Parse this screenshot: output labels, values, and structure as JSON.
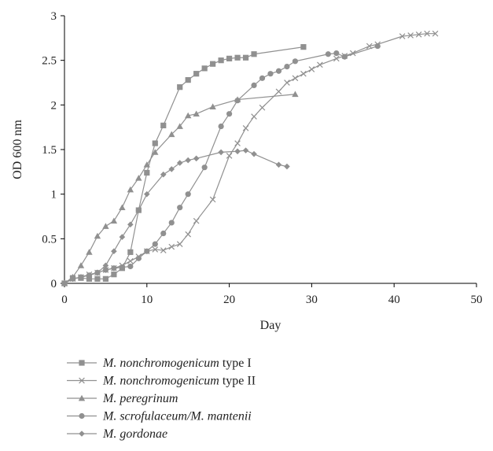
{
  "chart_data": {
    "type": "line",
    "title": "",
    "xlabel": "Day",
    "ylabel": "OD 600 nm",
    "xlim": [
      0,
      50
    ],
    "ylim": [
      0,
      3
    ],
    "xticks": [
      0,
      10,
      20,
      30,
      40,
      50
    ],
    "yticks": [
      0,
      0.5,
      1,
      1.5,
      2,
      2.5,
      3
    ],
    "xtick_labels": [
      "0",
      "10",
      "20",
      "30",
      "40",
      "50"
    ],
    "ytick_labels": [
      "0",
      "0.5",
      "1",
      "1.5",
      "2",
      "2.5",
      "3"
    ],
    "grid": false,
    "legend_position": "bottom",
    "colors": {
      "series": "#909090",
      "axis": "#000000",
      "text": "#222222"
    },
    "series": [
      {
        "name": "M. nonchromogenicum type I",
        "name_italic": "M. nonchromogenicum",
        "name_suffix": " type I",
        "marker": "square",
        "x": [
          0,
          1,
          2,
          3,
          4,
          5,
          6,
          7,
          8,
          9,
          10,
          11,
          12,
          14,
          15,
          16,
          17,
          18,
          19,
          20,
          21,
          22,
          23,
          29
        ],
        "y": [
          0,
          0.06,
          0.06,
          0.05,
          0.05,
          0.05,
          0.1,
          0.17,
          0.35,
          0.82,
          1.24,
          1.57,
          1.77,
          2.2,
          2.28,
          2.35,
          2.41,
          2.46,
          2.5,
          2.52,
          2.53,
          2.53,
          2.57,
          2.65
        ]
      },
      {
        "name": "M. nonchromogenicum type II",
        "name_italic": "M. nonchromogenicum",
        "name_suffix": " type II",
        "marker": "x",
        "x": [
          0,
          1,
          2,
          3,
          4,
          5,
          6,
          7,
          8,
          9,
          10,
          11,
          12,
          13,
          14,
          15,
          16,
          18,
          20,
          21,
          22,
          23,
          24,
          26,
          27,
          28,
          29,
          30,
          31,
          33,
          34,
          35,
          37,
          38,
          41,
          42,
          43,
          44,
          45
        ],
        "y": [
          0,
          0.05,
          0.07,
          0.1,
          0.12,
          0.15,
          0.17,
          0.2,
          0.25,
          0.3,
          0.36,
          0.38,
          0.37,
          0.41,
          0.44,
          0.55,
          0.7,
          0.94,
          1.43,
          1.57,
          1.74,
          1.87,
          1.97,
          2.15,
          2.25,
          2.3,
          2.35,
          2.4,
          2.45,
          2.52,
          2.55,
          2.58,
          2.66,
          2.68,
          2.77,
          2.78,
          2.79,
          2.8,
          2.8
        ]
      },
      {
        "name": "M. peregrinum",
        "name_italic": "M. peregrinum",
        "name_suffix": "",
        "marker": "triangle",
        "x": [
          0,
          1,
          2,
          3,
          4,
          5,
          6,
          7,
          8,
          9,
          10,
          11,
          13,
          14,
          15,
          16,
          18,
          21,
          28
        ],
        "y": [
          0,
          0.07,
          0.2,
          0.35,
          0.53,
          0.64,
          0.7,
          0.85,
          1.05,
          1.18,
          1.33,
          1.47,
          1.67,
          1.76,
          1.88,
          1.9,
          1.98,
          2.06,
          2.12
        ]
      },
      {
        "name": "M. scrofulaceum/M. mantenii",
        "name_italic": "M. scrofulaceum/M. mantenii",
        "name_suffix": "",
        "marker": "circle",
        "x": [
          0,
          1,
          2,
          3,
          4,
          5,
          6,
          7,
          8,
          9,
          10,
          11,
          12,
          13,
          14,
          15,
          17,
          19,
          20,
          21,
          23,
          24,
          25,
          26,
          27,
          28,
          32,
          33,
          34,
          38
        ],
        "y": [
          0,
          0.05,
          0.07,
          0.09,
          0.12,
          0.15,
          0.17,
          0.18,
          0.19,
          0.28,
          0.36,
          0.44,
          0.56,
          0.68,
          0.85,
          1.0,
          1.3,
          1.76,
          1.9,
          2.05,
          2.22,
          2.3,
          2.35,
          2.38,
          2.43,
          2.49,
          2.57,
          2.58,
          2.54,
          2.66
        ]
      },
      {
        "name": "M. gordonae",
        "name_italic": "M. gordonae",
        "name_suffix": "",
        "marker": "diamond",
        "x": [
          0,
          1,
          2,
          3,
          4,
          5,
          6,
          7,
          8,
          9,
          10,
          12,
          13,
          14,
          15,
          16,
          19,
          21,
          22,
          23,
          26,
          27
        ],
        "y": [
          0,
          0.05,
          0.07,
          0.09,
          0.12,
          0.2,
          0.36,
          0.52,
          0.66,
          0.82,
          1.0,
          1.22,
          1.28,
          1.35,
          1.38,
          1.4,
          1.47,
          1.48,
          1.49,
          1.45,
          1.33,
          1.31
        ]
      }
    ]
  }
}
